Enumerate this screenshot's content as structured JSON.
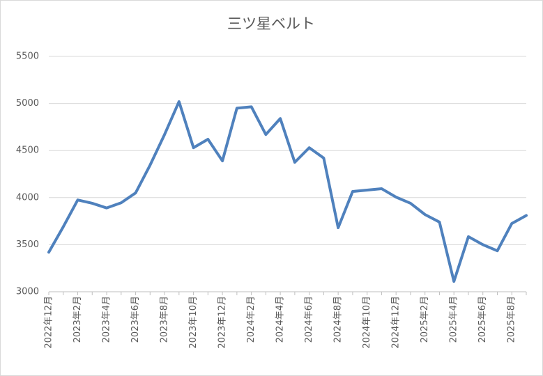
{
  "chart_data": {
    "type": "line",
    "title": "三ツ星ベルト",
    "categories": [
      "2022年12月",
      null,
      "2023年2月",
      null,
      "2023年4月",
      null,
      "2023年6月",
      null,
      "2023年8月",
      null,
      "2023年10月",
      null,
      "2023年12月",
      null,
      "2024年2月",
      null,
      "2024年4月",
      null,
      "2024年6月",
      null,
      "2024年8月",
      null,
      "2024年10月",
      null,
      "2024年12月",
      null,
      "2025年2月",
      null,
      "2025年4月",
      null,
      "2025年6月",
      null,
      "2025年8月",
      null
    ],
    "series": [
      {
        "name": "三ツ星ベルト",
        "color": "#4f81bd",
        "values": [
          3420,
          3690,
          3975,
          3940,
          3890,
          3945,
          4050,
          4345,
          4670,
          5020,
          4530,
          4620,
          4390,
          4950,
          4965,
          4670,
          4840,
          4375,
          4530,
          4420,
          3680,
          4065,
          4080,
          4095,
          4005,
          3940,
          3820,
          3740,
          3110,
          3585,
          3500,
          3435,
          3725,
          3810
        ]
      }
    ],
    "ylim": [
      3000,
      5500
    ],
    "yticks": [
      3000,
      3500,
      4000,
      4500,
      5000,
      5500
    ],
    "grid": true
  }
}
